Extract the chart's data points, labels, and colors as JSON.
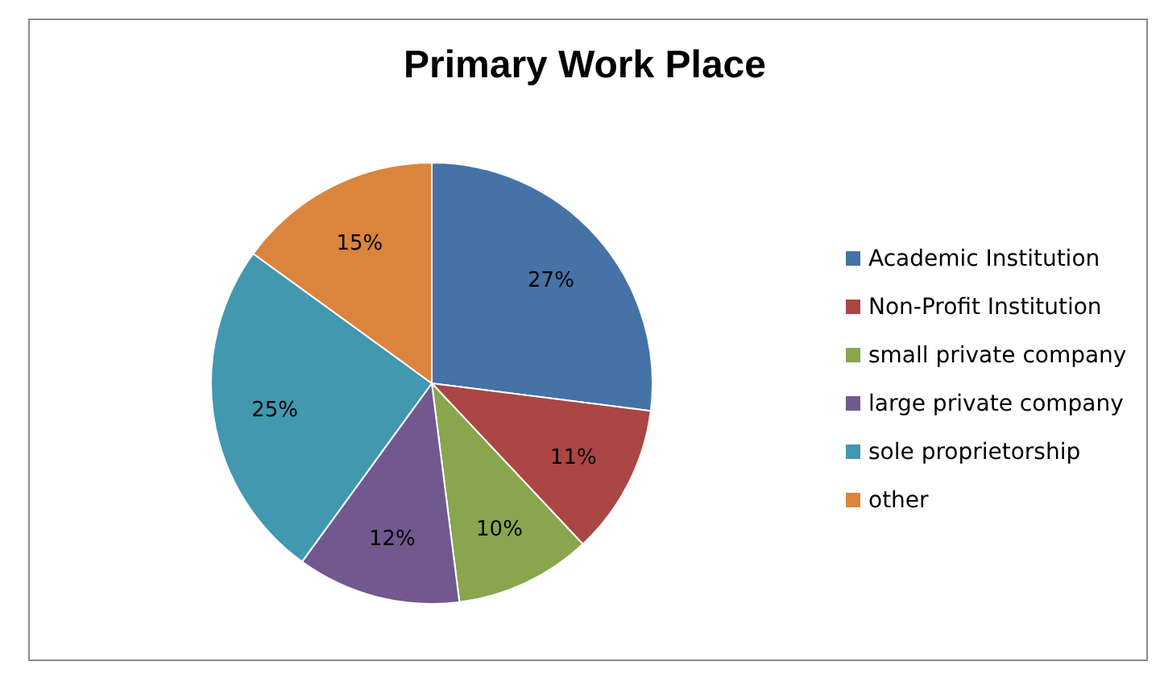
{
  "chart_data": {
    "type": "pie",
    "title": "Primary Work Place",
    "categories": [
      "Academic Institution",
      "Non-Profit Institution",
      "small private company",
      "large private company",
      "sole proprietorship",
      "other"
    ],
    "values": [
      27,
      11,
      10,
      12,
      25,
      15
    ],
    "colors": [
      "#4572a7",
      "#aa4643",
      "#89a54e",
      "#71588f",
      "#4198af",
      "#db843d"
    ],
    "value_labels": [
      "27%",
      "11%",
      "10%",
      "12%",
      "25%",
      "15%"
    ],
    "legend": "right"
  }
}
